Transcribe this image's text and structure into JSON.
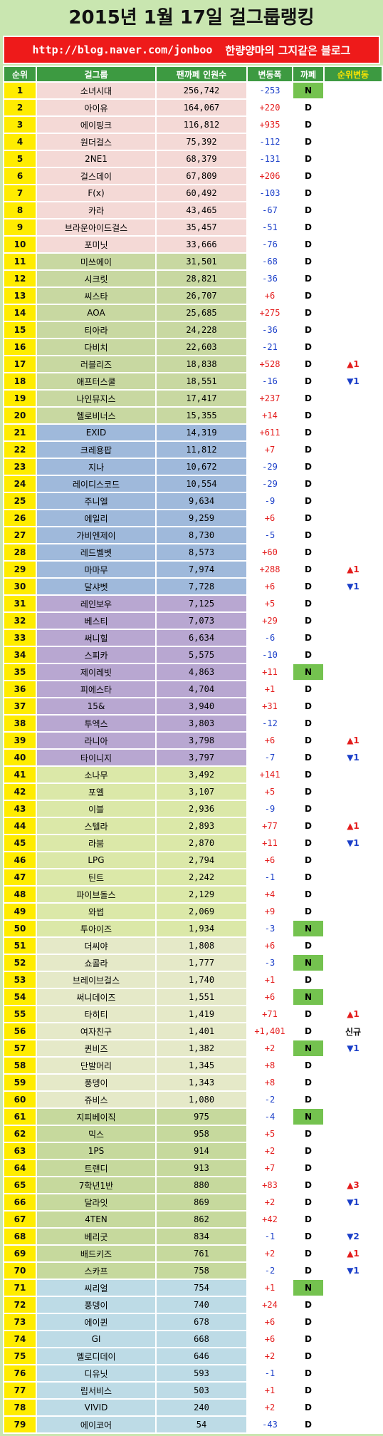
{
  "title": "2015년 1월 17일 걸그룹랭킹",
  "banner": {
    "url": "http://blog.naver.com/jonboo",
    "tagline": "한량양마의 그지같은 블로그"
  },
  "headers": {
    "rank": "순위",
    "group": "걸그룹",
    "fans": "팬까페 인원수",
    "delta": "변동폭",
    "cafe": "까페",
    "change": "순위변동"
  },
  "rows": [
    {
      "rank": "1",
      "name": "소녀시대",
      "fans": "256,742",
      "delta": "-253",
      "status": "N",
      "change": ""
    },
    {
      "rank": "2",
      "name": "아이유",
      "fans": "164,067",
      "delta": "+220",
      "status": "D",
      "change": ""
    },
    {
      "rank": "3",
      "name": "에이핑크",
      "fans": "116,812",
      "delta": "+935",
      "status": "D",
      "change": ""
    },
    {
      "rank": "4",
      "name": "원더걸스",
      "fans": "75,392",
      "delta": "-112",
      "status": "D",
      "change": ""
    },
    {
      "rank": "5",
      "name": "2NE1",
      "fans": "68,379",
      "delta": "-131",
      "status": "D",
      "change": ""
    },
    {
      "rank": "6",
      "name": "걸스데이",
      "fans": "67,809",
      "delta": "+206",
      "status": "D",
      "change": ""
    },
    {
      "rank": "7",
      "name": "F(x)",
      "fans": "60,492",
      "delta": "-103",
      "status": "D",
      "change": ""
    },
    {
      "rank": "8",
      "name": "카라",
      "fans": "43,465",
      "delta": "-67",
      "status": "D",
      "change": ""
    },
    {
      "rank": "9",
      "name": "브라운아이드걸스",
      "fans": "35,457",
      "delta": "-51",
      "status": "D",
      "change": ""
    },
    {
      "rank": "10",
      "name": "포미닛",
      "fans": "33,666",
      "delta": "-76",
      "status": "D",
      "change": ""
    },
    {
      "rank": "11",
      "name": "미쓰에이",
      "fans": "31,501",
      "delta": "-68",
      "status": "D",
      "change": ""
    },
    {
      "rank": "12",
      "name": "시크릿",
      "fans": "28,821",
      "delta": "-36",
      "status": "D",
      "change": ""
    },
    {
      "rank": "13",
      "name": "씨스타",
      "fans": "26,707",
      "delta": "+6",
      "status": "D",
      "change": ""
    },
    {
      "rank": "14",
      "name": "AOA",
      "fans": "25,685",
      "delta": "+275",
      "status": "D",
      "change": ""
    },
    {
      "rank": "15",
      "name": "티아라",
      "fans": "24,228",
      "delta": "-36",
      "status": "D",
      "change": ""
    },
    {
      "rank": "16",
      "name": "다비치",
      "fans": "22,603",
      "delta": "-21",
      "status": "D",
      "change": ""
    },
    {
      "rank": "17",
      "name": "러블리즈",
      "fans": "18,838",
      "delta": "+528",
      "status": "D",
      "change": "▲1"
    },
    {
      "rank": "18",
      "name": "애프터스쿨",
      "fans": "18,551",
      "delta": "-16",
      "status": "D",
      "change": "▼1"
    },
    {
      "rank": "19",
      "name": "나인뮤지스",
      "fans": "17,417",
      "delta": "+237",
      "status": "D",
      "change": ""
    },
    {
      "rank": "20",
      "name": "헬로비너스",
      "fans": "15,355",
      "delta": "+14",
      "status": "D",
      "change": ""
    },
    {
      "rank": "21",
      "name": "EXID",
      "fans": "14,319",
      "delta": "+611",
      "status": "D",
      "change": ""
    },
    {
      "rank": "22",
      "name": "크레용팝",
      "fans": "11,812",
      "delta": "+7",
      "status": "D",
      "change": ""
    },
    {
      "rank": "23",
      "name": "지나",
      "fans": "10,672",
      "delta": "-29",
      "status": "D",
      "change": ""
    },
    {
      "rank": "24",
      "name": "레이디스코드",
      "fans": "10,554",
      "delta": "-29",
      "status": "D",
      "change": ""
    },
    {
      "rank": "25",
      "name": "주니엘",
      "fans": "9,634",
      "delta": "-9",
      "status": "D",
      "change": ""
    },
    {
      "rank": "26",
      "name": "에일리",
      "fans": "9,259",
      "delta": "+6",
      "status": "D",
      "change": ""
    },
    {
      "rank": "27",
      "name": "가비엔제이",
      "fans": "8,730",
      "delta": "-5",
      "status": "D",
      "change": ""
    },
    {
      "rank": "28",
      "name": "레드벨벳",
      "fans": "8,573",
      "delta": "+60",
      "status": "D",
      "change": ""
    },
    {
      "rank": "29",
      "name": "마마무",
      "fans": "7,974",
      "delta": "+288",
      "status": "D",
      "change": "▲1"
    },
    {
      "rank": "30",
      "name": "달샤벳",
      "fans": "7,728",
      "delta": "+6",
      "status": "D",
      "change": "▼1"
    },
    {
      "rank": "31",
      "name": "레인보우",
      "fans": "7,125",
      "delta": "+5",
      "status": "D",
      "change": ""
    },
    {
      "rank": "32",
      "name": "베스티",
      "fans": "7,073",
      "delta": "+29",
      "status": "D",
      "change": ""
    },
    {
      "rank": "33",
      "name": "써니힐",
      "fans": "6,634",
      "delta": "-6",
      "status": "D",
      "change": ""
    },
    {
      "rank": "34",
      "name": "스피카",
      "fans": "5,575",
      "delta": "-10",
      "status": "D",
      "change": ""
    },
    {
      "rank": "35",
      "name": "제이레빗",
      "fans": "4,863",
      "delta": "+11",
      "status": "N",
      "change": ""
    },
    {
      "rank": "36",
      "name": "피에스타",
      "fans": "4,704",
      "delta": "+1",
      "status": "D",
      "change": ""
    },
    {
      "rank": "37",
      "name": "15&",
      "fans": "3,940",
      "delta": "+31",
      "status": "D",
      "change": ""
    },
    {
      "rank": "38",
      "name": "투엑스",
      "fans": "3,803",
      "delta": "-12",
      "status": "D",
      "change": ""
    },
    {
      "rank": "39",
      "name": "라니아",
      "fans": "3,798",
      "delta": "+6",
      "status": "D",
      "change": "▲1"
    },
    {
      "rank": "40",
      "name": "타이니지",
      "fans": "3,797",
      "delta": "-7",
      "status": "D",
      "change": "▼1"
    },
    {
      "rank": "41",
      "name": "소나무",
      "fans": "3,492",
      "delta": "+141",
      "status": "D",
      "change": ""
    },
    {
      "rank": "42",
      "name": "포엘",
      "fans": "3,107",
      "delta": "+5",
      "status": "D",
      "change": ""
    },
    {
      "rank": "43",
      "name": "이블",
      "fans": "2,936",
      "delta": "-9",
      "status": "D",
      "change": ""
    },
    {
      "rank": "44",
      "name": "스텔라",
      "fans": "2,893",
      "delta": "+77",
      "status": "D",
      "change": "▲1"
    },
    {
      "rank": "45",
      "name": "라붐",
      "fans": "2,870",
      "delta": "+11",
      "status": "D",
      "change": "▼1"
    },
    {
      "rank": "46",
      "name": "LPG",
      "fans": "2,794",
      "delta": "+6",
      "status": "D",
      "change": ""
    },
    {
      "rank": "47",
      "name": "틴트",
      "fans": "2,242",
      "delta": "-1",
      "status": "D",
      "change": ""
    },
    {
      "rank": "48",
      "name": "파이브돌스",
      "fans": "2,129",
      "delta": "+4",
      "status": "D",
      "change": ""
    },
    {
      "rank": "49",
      "name": "와썹",
      "fans": "2,069",
      "delta": "+9",
      "status": "D",
      "change": ""
    },
    {
      "rank": "50",
      "name": "투아이즈",
      "fans": "1,934",
      "delta": "-3",
      "status": "N",
      "change": ""
    },
    {
      "rank": "51",
      "name": "더씨야",
      "fans": "1,808",
      "delta": "+6",
      "status": "D",
      "change": ""
    },
    {
      "rank": "52",
      "name": "쇼콜라",
      "fans": "1,777",
      "delta": "-3",
      "status": "N",
      "change": ""
    },
    {
      "rank": "53",
      "name": "브레이브걸스",
      "fans": "1,740",
      "delta": "+1",
      "status": "D",
      "change": ""
    },
    {
      "rank": "54",
      "name": "써니데이즈",
      "fans": "1,551",
      "delta": "+6",
      "status": "N",
      "change": ""
    },
    {
      "rank": "55",
      "name": "타히티",
      "fans": "1,419",
      "delta": "+71",
      "status": "D",
      "change": "▲1"
    },
    {
      "rank": "56",
      "name": "여자친구",
      "fans": "1,401",
      "delta": "+1,401",
      "status": "D",
      "change": "신규"
    },
    {
      "rank": "57",
      "name": "퀸비즈",
      "fans": "1,382",
      "delta": "+2",
      "status": "N",
      "change": "▼1"
    },
    {
      "rank": "58",
      "name": "단발머리",
      "fans": "1,345",
      "delta": "+8",
      "status": "D",
      "change": ""
    },
    {
      "rank": "59",
      "name": "풍뎅이",
      "fans": "1,343",
      "delta": "+8",
      "status": "D",
      "change": ""
    },
    {
      "rank": "60",
      "name": "쥬비스",
      "fans": "1,080",
      "delta": "-2",
      "status": "D",
      "change": ""
    },
    {
      "rank": "61",
      "name": "지피베이직",
      "fans": "975",
      "delta": "-4",
      "status": "N",
      "change": ""
    },
    {
      "rank": "62",
      "name": "믹스",
      "fans": "958",
      "delta": "+5",
      "status": "D",
      "change": ""
    },
    {
      "rank": "63",
      "name": "1PS",
      "fans": "914",
      "delta": "+2",
      "status": "D",
      "change": ""
    },
    {
      "rank": "64",
      "name": "트랜디",
      "fans": "913",
      "delta": "+7",
      "status": "D",
      "change": ""
    },
    {
      "rank": "65",
      "name": "7학년1반",
      "fans": "880",
      "delta": "+83",
      "status": "D",
      "change": "▲3"
    },
    {
      "rank": "66",
      "name": "달라잇",
      "fans": "869",
      "delta": "+2",
      "status": "D",
      "change": "▼1"
    },
    {
      "rank": "67",
      "name": "4TEN",
      "fans": "862",
      "delta": "+42",
      "status": "D",
      "change": ""
    },
    {
      "rank": "68",
      "name": "베리굿",
      "fans": "834",
      "delta": "-1",
      "status": "D",
      "change": "▼2"
    },
    {
      "rank": "69",
      "name": "배드키즈",
      "fans": "761",
      "delta": "+2",
      "status": "D",
      "change": "▲1"
    },
    {
      "rank": "70",
      "name": "스카프",
      "fans": "758",
      "delta": "-2",
      "status": "D",
      "change": "▼1"
    },
    {
      "rank": "71",
      "name": "씨리얼",
      "fans": "754",
      "delta": "+1",
      "status": "N",
      "change": ""
    },
    {
      "rank": "72",
      "name": "풍뎅이",
      "fans": "740",
      "delta": "+24",
      "status": "D",
      "change": ""
    },
    {
      "rank": "73",
      "name": "에이퀸",
      "fans": "678",
      "delta": "+6",
      "status": "D",
      "change": ""
    },
    {
      "rank": "74",
      "name": "GI",
      "fans": "668",
      "delta": "+6",
      "status": "D",
      "change": ""
    },
    {
      "rank": "75",
      "name": "멜로디데이",
      "fans": "646",
      "delta": "+2",
      "status": "D",
      "change": ""
    },
    {
      "rank": "76",
      "name": "디유닛",
      "fans": "593",
      "delta": "-1",
      "status": "D",
      "change": ""
    },
    {
      "rank": "77",
      "name": "립서비스",
      "fans": "503",
      "delta": "+1",
      "status": "D",
      "change": ""
    },
    {
      "rank": "78",
      "name": "VIVID",
      "fans": "240",
      "delta": "+2",
      "status": "D",
      "change": ""
    },
    {
      "rank": "79",
      "name": "에이코어",
      "fans": "54",
      "delta": "-43",
      "status": "D",
      "change": ""
    }
  ],
  "group_colors": {
    "1-10": "#f4d9d6",
    "11-20": "#c8d8a1",
    "21-30": "#9fb9db",
    "31-40": "#b8a7d1",
    "41-50": "#dbe8a8",
    "51-60": "#e5e9c8",
    "61-70": "#c6d99d",
    "71-79": "#bddbe6"
  }
}
